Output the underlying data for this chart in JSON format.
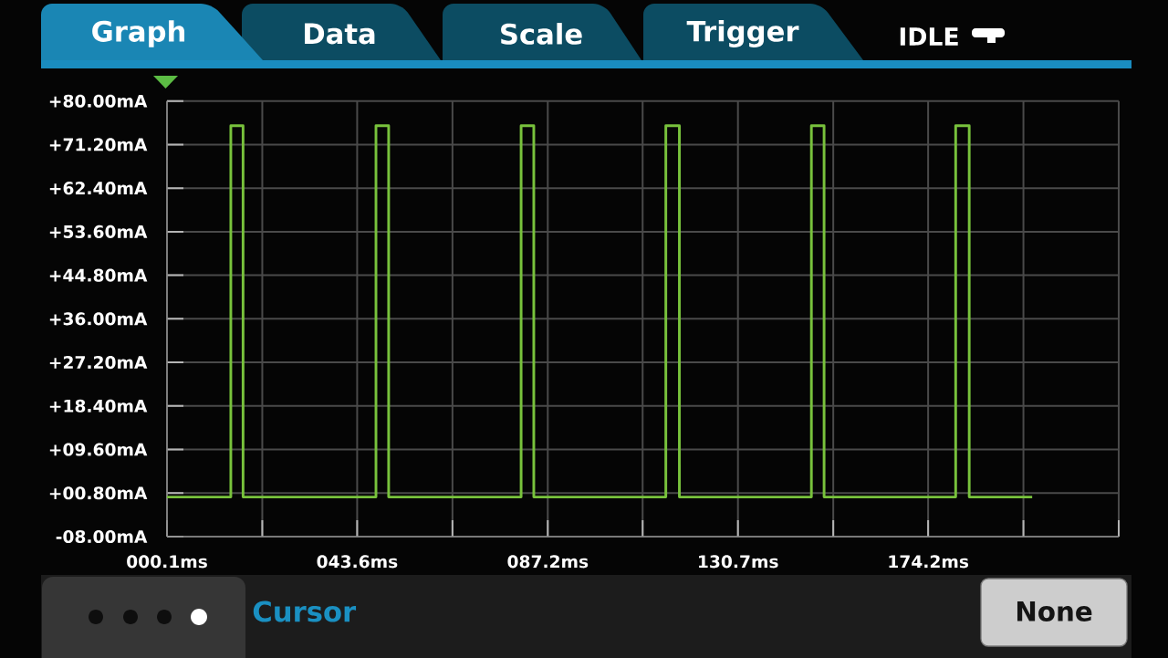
{
  "chart_data": {
    "type": "step",
    "x": [
      0.1,
      14.7,
      17.5,
      47.9,
      50.8,
      81.1,
      84.0,
      114.2,
      117.3,
      147.5,
      150.4,
      180.5,
      183.6,
      198.0
    ],
    "series": [
      {
        "color": "#78c23c",
        "values": [
          0,
          75,
          0,
          75,
          0,
          75,
          0,
          75,
          0,
          75,
          0,
          75,
          0,
          0
        ]
      }
    ],
    "xlim": [
      0.1,
      217.8
    ],
    "ylim": [
      -8,
      80
    ],
    "xticks": [
      {
        "value": 0.1,
        "label": "000.1ms"
      },
      {
        "value": 21.9,
        "label": null
      },
      {
        "value": 43.6,
        "label": "043.6ms"
      },
      {
        "value": 65.4,
        "label": null
      },
      {
        "value": 87.2,
        "label": "087.2ms"
      },
      {
        "value": 108.9,
        "label": null
      },
      {
        "value": 130.7,
        "label": "130.7ms"
      },
      {
        "value": 152.5,
        "label": null
      },
      {
        "value": 174.2,
        "label": "174.2ms"
      },
      {
        "value": 196.0,
        "label": null
      },
      {
        "value": 217.8,
        "label": null
      }
    ],
    "yticks": [
      {
        "value": -8,
        "label": "-08.00mA"
      },
      {
        "value": 0.8,
        "label": "+00.80mA"
      },
      {
        "value": 9.6,
        "label": "+09.60mA"
      },
      {
        "value": 18.4,
        "label": "+18.40mA"
      },
      {
        "value": 27.2,
        "label": "+27.20mA"
      },
      {
        "value": 36,
        "label": "+36.00mA"
      },
      {
        "value": 44.8,
        "label": "+44.80mA"
      },
      {
        "value": 53.6,
        "label": "+53.60mA"
      },
      {
        "value": 62.4,
        "label": "+62.40mA"
      },
      {
        "value": 71.2,
        "label": "+71.20mA"
      },
      {
        "value": 80,
        "label": "+80.00mA"
      }
    ],
    "grid": true,
    "annotations": [
      "Graph",
      "Data",
      "Scale",
      "Trigger",
      "IDLE",
      "Cursor",
      "None"
    ]
  }
}
